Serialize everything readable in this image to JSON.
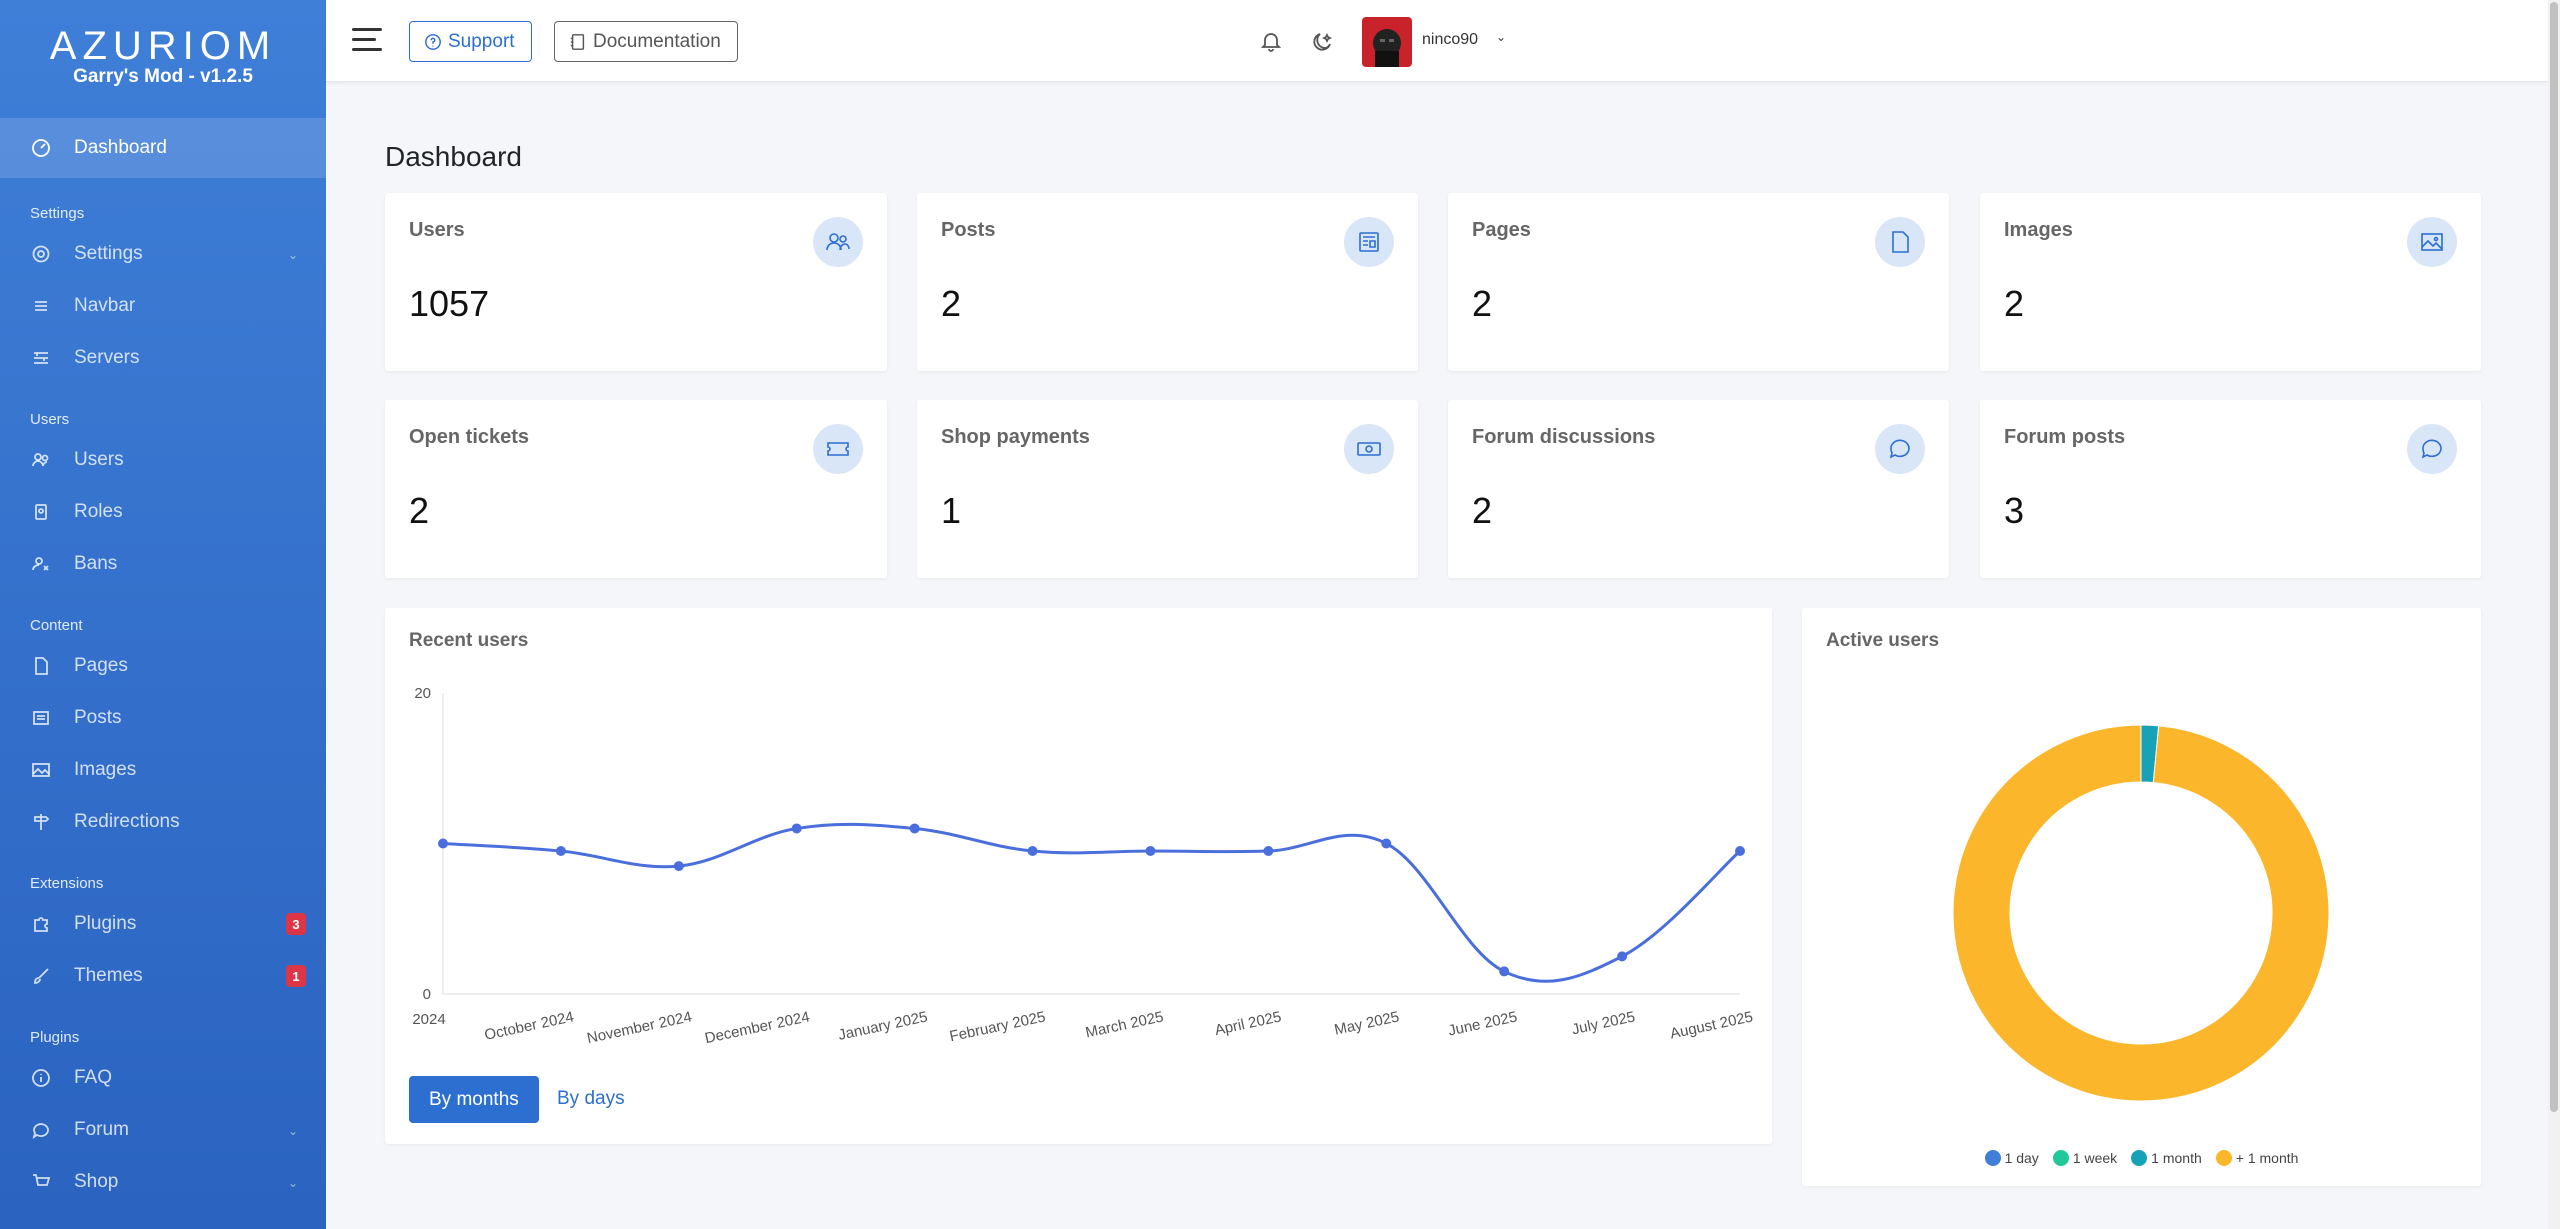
{
  "brand": {
    "logo": "AZURIOM",
    "subtitle": "Garry's Mod - v1.2.5"
  },
  "sidebar": {
    "dashboard": "Dashboard",
    "sections": {
      "settings": {
        "header": "Settings",
        "items": [
          "Settings",
          "Navbar",
          "Servers"
        ]
      },
      "users": {
        "header": "Users",
        "items": [
          "Users",
          "Roles",
          "Bans"
        ]
      },
      "content": {
        "header": "Content",
        "items": [
          "Pages",
          "Posts",
          "Images",
          "Redirections"
        ]
      },
      "extensions": {
        "header": "Extensions",
        "items": [
          "Plugins",
          "Themes"
        ],
        "badges": [
          "3",
          "1"
        ]
      },
      "plugins": {
        "header": "Plugins",
        "items": [
          "FAQ",
          "Forum",
          "Shop"
        ]
      }
    }
  },
  "topbar": {
    "support_label": "Support",
    "documentation_label": "Documentation",
    "username": "ninco90"
  },
  "main": {
    "title": "Dashboard",
    "stats": [
      {
        "label": "Users",
        "value": "1057",
        "icon": "users-icon"
      },
      {
        "label": "Posts",
        "value": "2",
        "icon": "newspaper-icon"
      },
      {
        "label": "Pages",
        "value": "2",
        "icon": "file-icon"
      },
      {
        "label": "Images",
        "value": "2",
        "icon": "image-icon"
      },
      {
        "label": "Open tickets",
        "value": "2",
        "icon": "ticket-icon"
      },
      {
        "label": "Shop payments",
        "value": "1",
        "icon": "cash-icon"
      },
      {
        "label": "Forum discussions",
        "value": "2",
        "icon": "chat-icon"
      },
      {
        "label": "Forum posts",
        "value": "3",
        "icon": "chat-icon"
      }
    ],
    "recent_users": {
      "title": "Recent users",
      "by_months_label": "By months",
      "by_days_label": "By days"
    },
    "active_users": {
      "title": "Active users"
    }
  },
  "chart_data": [
    {
      "type": "line",
      "title": "Recent users",
      "categories": [
        "2024",
        "October 2024",
        "November 2024",
        "December 2024",
        "January 2025",
        "February 2025",
        "March 2025",
        "April 2025",
        "May 2025",
        "June 2025",
        "July 2025",
        "August 2025"
      ],
      "series": [
        {
          "values": [
            10,
            9.5,
            8.5,
            11,
            11,
            9.5,
            9.5,
            9.5,
            10,
            1.5,
            2.5,
            9.5
          ]
        }
      ],
      "ylim": [
        0,
        20
      ],
      "yticks": [
        "0",
        "20"
      ],
      "color": "#4a6fdc"
    },
    {
      "type": "pie",
      "title": "Active users",
      "donut": true,
      "categories": [
        "1 day",
        "1 week",
        "1 month",
        "+ 1 month"
      ],
      "values": [
        0,
        0,
        1.5,
        98.5
      ],
      "colors": [
        "#3f7fd8",
        "#20c997",
        "#17a2b8",
        "#fbb62c"
      ]
    }
  ]
}
